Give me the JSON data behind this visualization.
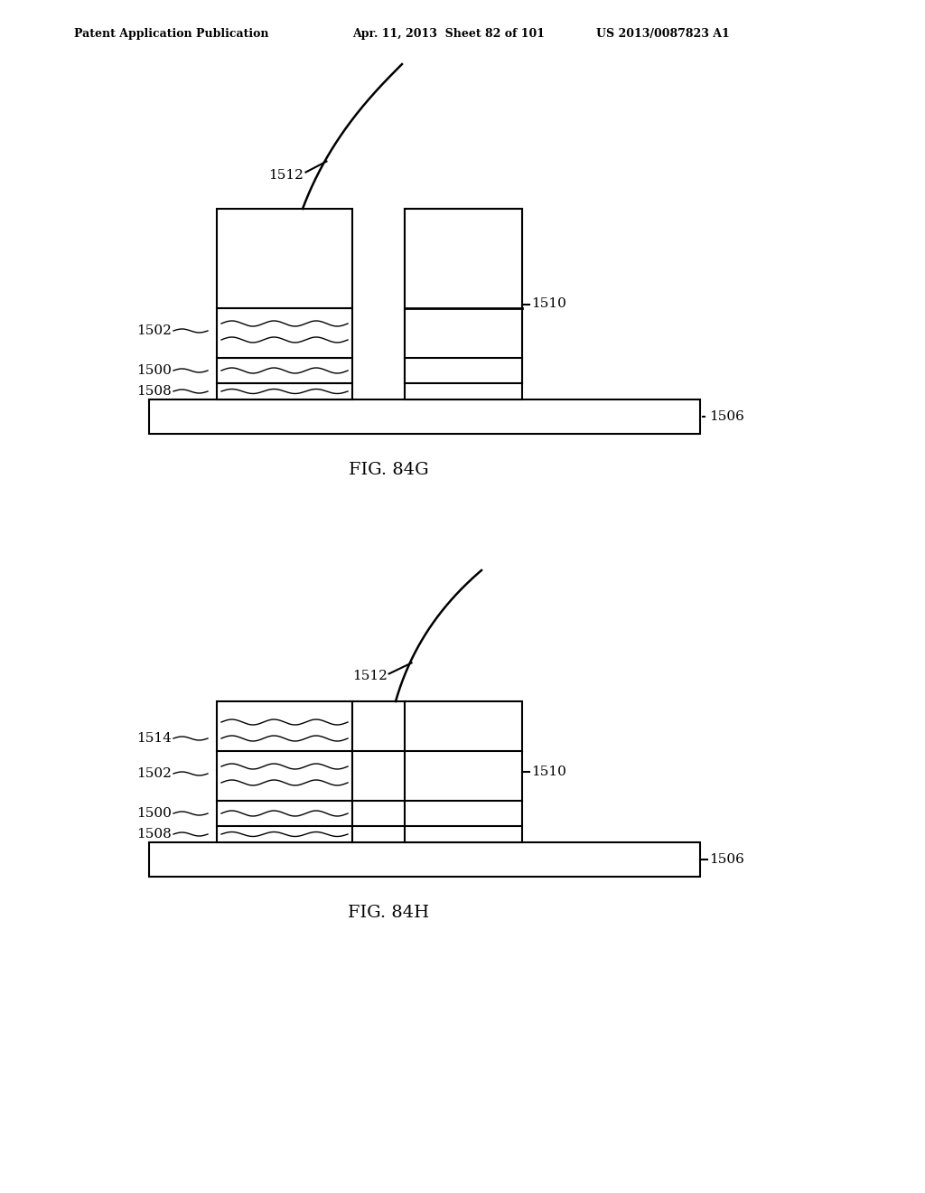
{
  "background_color": "#ffffff",
  "header_left": "Patent Application Publication",
  "header_mid": "Apr. 11, 2013  Sheet 82 of 101",
  "header_right": "US 2013/0087823 A1",
  "fig1_label": "FIG. 84G",
  "fig2_label": "FIG. 84H",
  "line_color": "#000000",
  "lw": 1.5,
  "font_size": 11
}
